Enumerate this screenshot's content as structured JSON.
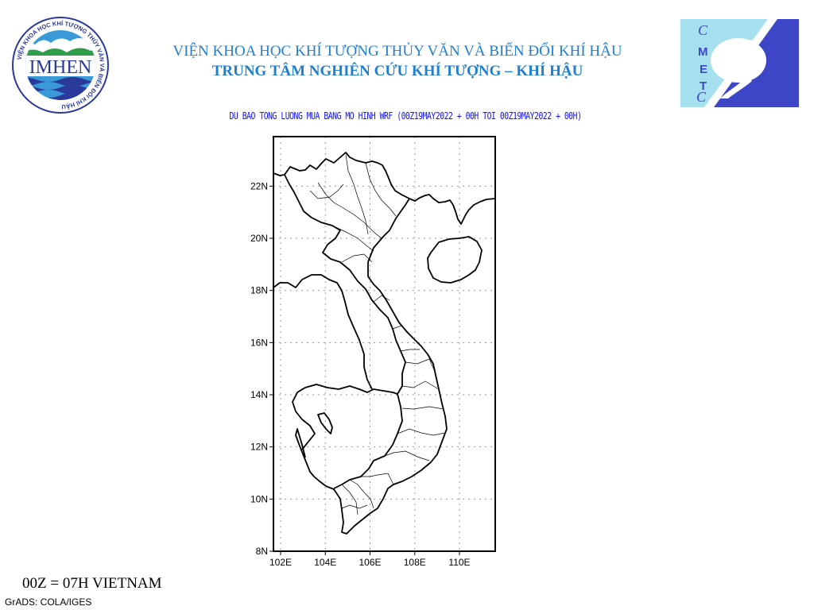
{
  "header": {
    "line1": "VIỆN KHOA HỌC KHÍ TƯỢNG THỦY VĂN VÀ BIẾN ĐỔI KHÍ HẬU",
    "line2": "TRUNG TÂM NGHIÊN CỨU KHÍ TƯỢNG – KHÍ HẬU"
  },
  "logos": {
    "left": {
      "name": "IMHEN",
      "ring_text": "VIỆN KHOA HỌC KHÍ TƯỢNG THỦY VĂN VÀ BIẾN ĐỔI KHÍ HẬU"
    },
    "right": {
      "name": "CMETC",
      "letters": [
        "C",
        "M",
        "E",
        "T",
        "C"
      ]
    }
  },
  "map": {
    "title": "DU BAO TONG LUONG MUA BANG MO HINH WRF (00Z19MAY2022 + 00H TOI 00Z19MAY2022 + 00H)",
    "lon_range": [
      101.68,
      111.6
    ],
    "lat_range": [
      8.0,
      23.9
    ],
    "lon_ticks": [
      {
        "value": 102,
        "label": "102E"
      },
      {
        "value": 104,
        "label": "104E"
      },
      {
        "value": 106,
        "label": "106E"
      },
      {
        "value": 108,
        "label": "108E"
      },
      {
        "value": 110,
        "label": "110E"
      }
    ],
    "lat_ticks": [
      {
        "value": 8,
        "label": "8N"
      },
      {
        "value": 10,
        "label": "10N"
      },
      {
        "value": 12,
        "label": "12N"
      },
      {
        "value": 14,
        "label": "14N"
      },
      {
        "value": 16,
        "label": "16N"
      },
      {
        "value": 18,
        "label": "18N"
      },
      {
        "value": 20,
        "label": "20N"
      },
      {
        "value": 22,
        "label": "22N"
      }
    ],
    "grid": "dotted",
    "colors": {
      "grid": "#999999",
      "coast": "#000000",
      "title": "#1010ff",
      "header": "#1e7fcf"
    }
  },
  "footer": {
    "timezone_note": "00Z = 07H VIETNAM",
    "credit": "GrADS: COLA/IGES"
  }
}
